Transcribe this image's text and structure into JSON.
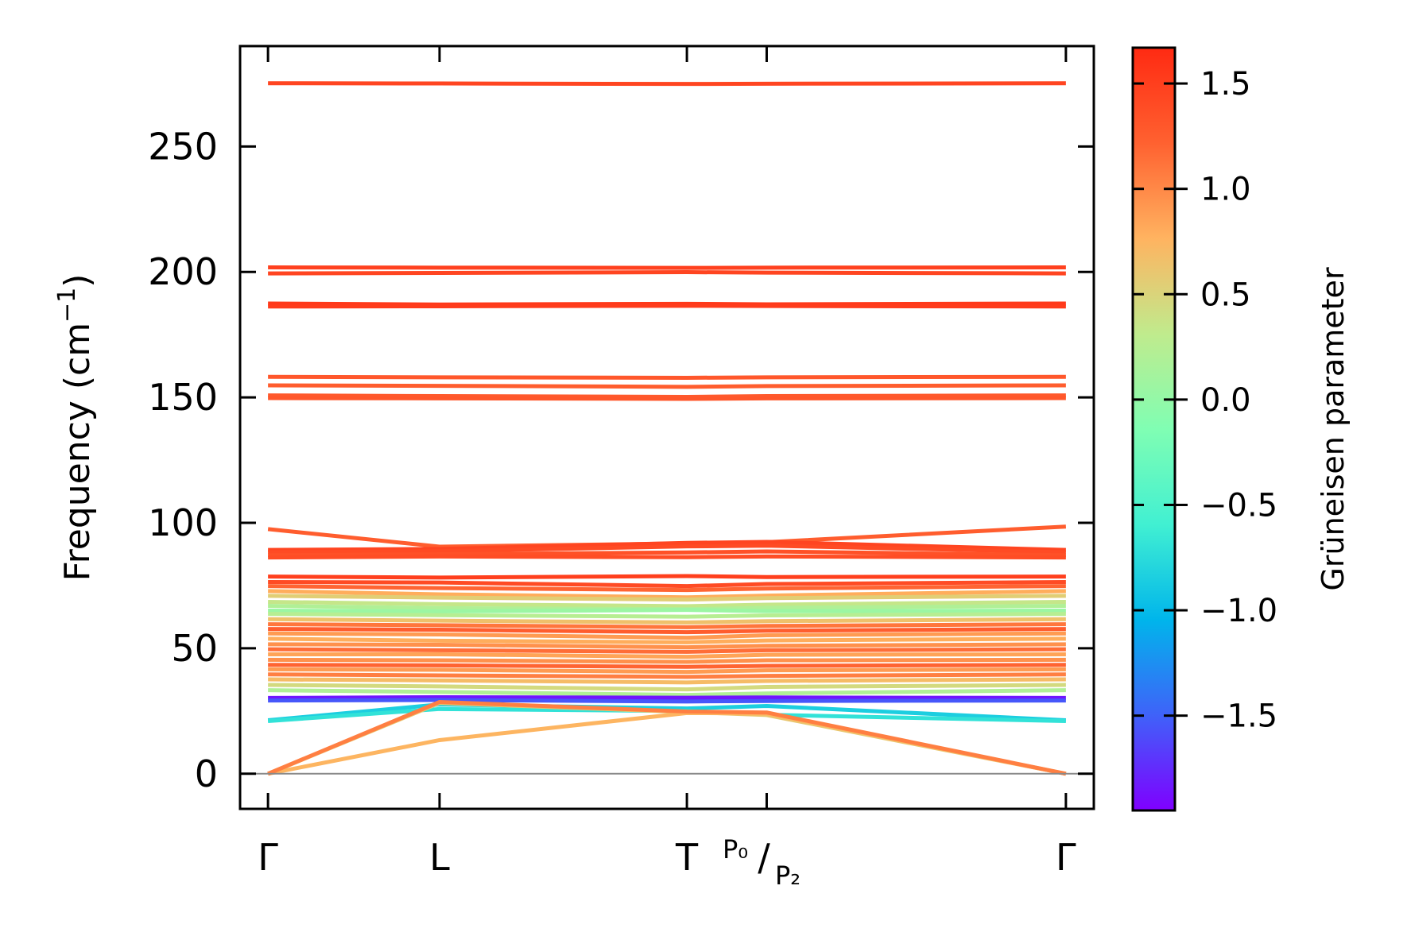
{
  "chart_data": {
    "type": "line",
    "ylabel": {
      "prefix": "Frequency (cm",
      "superscript": "−1",
      "suffix": ")"
    },
    "ylim": [
      -14,
      290
    ],
    "yticks": [
      {
        "value": 0,
        "label": "0"
      },
      {
        "value": 50,
        "label": "50"
      },
      {
        "value": 100,
        "label": "100"
      },
      {
        "value": 150,
        "label": "150"
      },
      {
        "value": 200,
        "label": "200"
      },
      {
        "value": 250,
        "label": "250"
      }
    ],
    "xlim": [
      -0.07,
      2.07
    ],
    "xticks": [
      {
        "value": 0.0,
        "label": "Γ"
      },
      {
        "value": 0.43,
        "label": "L"
      },
      {
        "value": 1.05,
        "label": "T"
      },
      {
        "value": 1.25,
        "label": ""
      },
      {
        "value": 2.0,
        "label": "Γ"
      }
    ],
    "high_symmetry_label_split": {
      "top": "P₀",
      "slash": "/",
      "bottom": "P₂"
    },
    "colorbar": {
      "label": "Grüneisen parameter",
      "range": [
        -1.95,
        1.67
      ],
      "ticks": [
        {
          "value": -1.5,
          "label": "−1.5"
        },
        {
          "value": -1.0,
          "label": "−1.0"
        },
        {
          "value": -0.5,
          "label": "−0.5"
        },
        {
          "value": 0.0,
          "label": "0.0"
        },
        {
          "value": 0.5,
          "label": "0.5"
        },
        {
          "value": 1.0,
          "label": "1.0"
        },
        {
          "value": 1.5,
          "label": "1.5"
        }
      ],
      "colormap": "rainbow",
      "stops": [
        "#7f00ff",
        "#3f62f9",
        "#00b5eb",
        "#41f0d2",
        "#80feb3",
        "#c0eb8d",
        "#ffb360",
        "#ff6130",
        "#ff2a12"
      ]
    },
    "zero_line": 0,
    "series": [
      {
        "values": [
          275.2,
          275.1,
          274.9,
          275.0,
          275.2
        ],
        "gamma": 1.45
      },
      {
        "values": [
          201.8,
          201.7,
          201.6,
          201.7,
          201.8
        ],
        "gamma": 1.48
      },
      {
        "values": [
          199.4,
          199.6,
          199.9,
          199.7,
          199.4
        ],
        "gamma": 1.45
      },
      {
        "values": [
          187.4,
          187.0,
          187.3,
          187.1,
          187.4
        ],
        "gamma": 1.55
      },
      {
        "values": [
          186.2,
          186.3,
          186.5,
          186.4,
          186.2
        ],
        "gamma": 1.52
      },
      {
        "values": [
          158.2,
          158.0,
          157.8,
          158.0,
          158.2
        ],
        "gamma": 1.3
      },
      {
        "values": [
          154.8,
          154.6,
          154.2,
          154.5,
          154.8
        ],
        "gamma": 1.25
      },
      {
        "values": [
          150.8,
          150.5,
          150.2,
          150.5,
          150.8
        ],
        "gamma": 1.28
      },
      {
        "values": [
          149.7,
          149.6,
          149.4,
          149.6,
          149.7
        ],
        "gamma": 1.3
      },
      {
        "values": [
          97.5,
          90.5,
          91.8,
          92.3,
          98.5
        ],
        "gamma": 1.25
      },
      {
        "values": [
          89.2,
          89.6,
          92.0,
          92.4,
          89.2
        ],
        "gamma": 1.45
      },
      {
        "values": [
          88.3,
          88.7,
          90.6,
          90.9,
          88.3
        ],
        "gamma": 1.4
      },
      {
        "values": [
          87.1,
          87.5,
          88.2,
          88.6,
          87.1
        ],
        "gamma": 1.35
      },
      {
        "values": [
          86.2,
          86.6,
          86.3,
          86.6,
          86.2
        ],
        "gamma": 1.38
      },
      {
        "values": [
          78.6,
          78.2,
          78.8,
          78.4,
          78.6
        ],
        "gamma": 1.5
      },
      {
        "values": [
          76.4,
          76.2,
          74.8,
          75.6,
          76.4
        ],
        "gamma": 1.4
      },
      {
        "values": [
          74.8,
          74.0,
          73.2,
          73.8,
          74.8
        ],
        "gamma": 1.2
      },
      {
        "values": [
          72.8,
          71.5,
          70.3,
          71.0,
          72.8
        ],
        "gamma": 0.8
      },
      {
        "values": [
          70.9,
          70.2,
          69.4,
          70.0,
          70.9
        ],
        "gamma": 0.55
      },
      {
        "values": [
          68.5,
          67.6,
          66.8,
          67.4,
          68.5
        ],
        "gamma": 0.35
      },
      {
        "values": [
          66.9,
          66.0,
          65.6,
          66.1,
          66.9
        ],
        "gamma": 0.2
      },
      {
        "values": [
          65.0,
          64.7,
          65.3,
          64.8,
          65.0
        ],
        "gamma": 0.05
      },
      {
        "values": [
          63.7,
          63.2,
          62.6,
          63.1,
          63.7
        ],
        "gamma": 0.25
      },
      {
        "values": [
          61.6,
          61.0,
          60.3,
          60.8,
          61.6
        ],
        "gamma": 0.65
      },
      {
        "values": [
          59.6,
          59.2,
          58.4,
          58.9,
          59.6
        ],
        "gamma": 1.1
      },
      {
        "values": [
          57.7,
          57.4,
          56.4,
          57.0,
          57.7
        ],
        "gamma": 1.25
      },
      {
        "values": [
          55.9,
          55.5,
          54.2,
          55.2,
          55.9
        ],
        "gamma": 0.9
      },
      {
        "values": [
          53.8,
          53.0,
          52.4,
          53.1,
          53.8
        ],
        "gamma": 0.8
      },
      {
        "values": [
          51.6,
          51.4,
          50.4,
          51.0,
          51.6
        ],
        "gamma": 0.95
      },
      {
        "values": [
          49.6,
          49.2,
          48.6,
          49.2,
          49.6
        ],
        "gamma": 1.15
      },
      {
        "values": [
          47.6,
          47.6,
          46.6,
          47.4,
          47.6
        ],
        "gamma": 0.85
      },
      {
        "values": [
          45.4,
          45.2,
          44.6,
          45.2,
          45.4
        ],
        "gamma": 0.95
      },
      {
        "values": [
          43.4,
          43.2,
          42.6,
          43.0,
          43.4
        ],
        "gamma": 1.2
      },
      {
        "values": [
          41.6,
          41.4,
          40.6,
          41.2,
          41.6
        ],
        "gamma": 0.9
      },
      {
        "values": [
          39.6,
          39.2,
          38.6,
          39.0,
          39.6
        ],
        "gamma": 1.05
      },
      {
        "values": [
          37.6,
          37.2,
          36.4,
          37.0,
          37.6
        ],
        "gamma": 0.7
      },
      {
        "values": [
          35.4,
          34.8,
          33.6,
          34.6,
          35.4
        ],
        "gamma": 0.45
      },
      {
        "values": [
          33.3,
          32.6,
          31.4,
          32.0,
          33.3
        ],
        "gamma": 0.2
      },
      {
        "values": [
          30.2,
          30.5,
          30.3,
          30.4,
          30.2
        ],
        "gamma": -1.85
      },
      {
        "values": [
          29.2,
          29.4,
          28.8,
          29.0,
          29.2
        ],
        "gamma": -1.55
      },
      {
        "values": [
          21.3,
          27.6,
          26.0,
          27.0,
          21.3
        ],
        "gamma": -0.85
      },
      {
        "values": [
          21.0,
          25.8,
          25.0,
          23.5,
          21.0
        ],
        "gamma": -0.7
      },
      {
        "values": [
          0.0,
          28.2,
          24.6,
          23.4,
          0.0
        ],
        "gamma": 0.6
      },
      {
        "values": [
          0.0,
          13.4,
          24.2,
          24.0,
          0.0
        ],
        "gamma": 0.75
      },
      {
        "values": [
          0.0,
          28.6,
          24.8,
          24.4,
          0.0
        ],
        "gamma": 1.05
      }
    ]
  }
}
